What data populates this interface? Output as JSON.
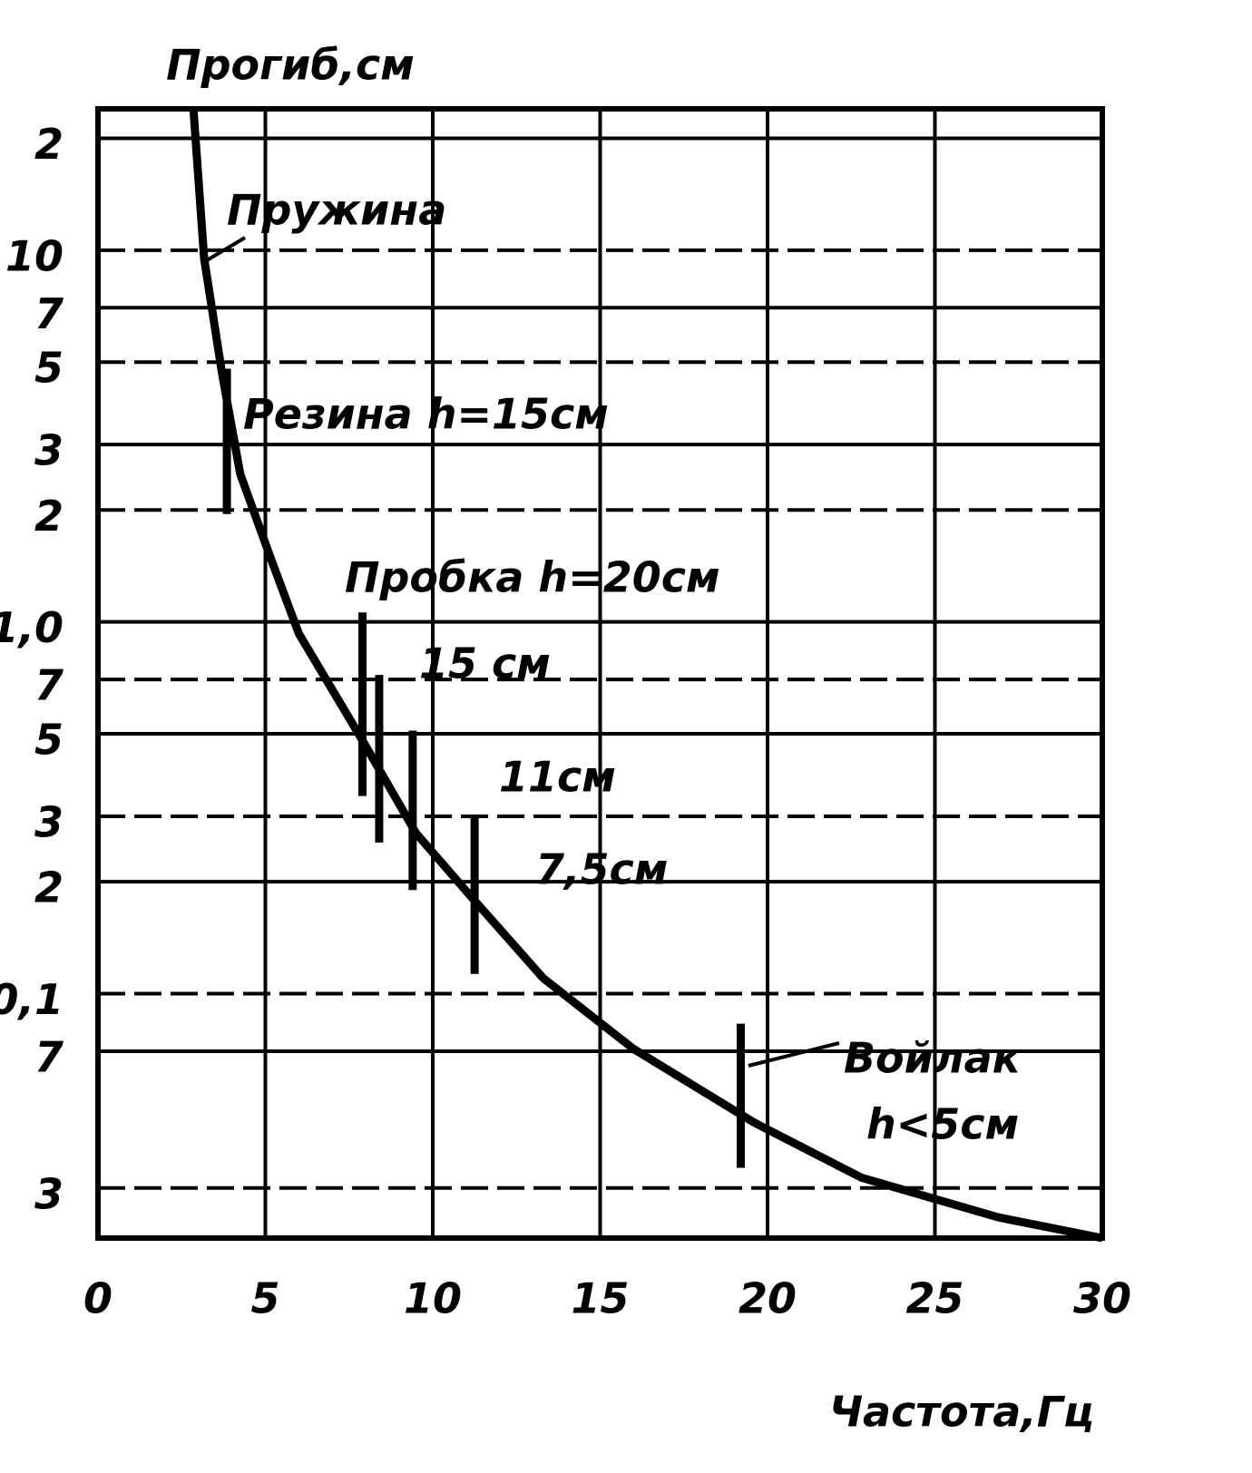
{
  "chart_data": {
    "type": "line",
    "title": "Прогиб,см",
    "x_label": "Частота,Гц",
    "log_y": true,
    "grid": true,
    "xlim": [
      0,
      30
    ],
    "xticks": [
      0,
      5,
      10,
      15,
      20,
      25,
      30
    ],
    "ylim": [
      0.022,
      24
    ],
    "yticks": [
      {
        "value": 20,
        "label": "2"
      },
      10,
      7,
      5,
      3,
      2,
      {
        "value": 1,
        "label": "1,0"
      },
      {
        "value": 0.7,
        "label": "7"
      },
      {
        "value": 0.5,
        "label": "5"
      },
      {
        "value": 0.3,
        "label": "3"
      },
      {
        "value": 0.2,
        "label": "2"
      },
      {
        "value": 0.1,
        "label": "0,1"
      },
      {
        "value": 0.07,
        "label": "7"
      },
      {
        "value": 0.03,
        "label": "3"
      }
    ],
    "series": [
      {
        "color": "#000000",
        "x": [
          2.85,
          3.17,
          3.7,
          4.25,
          5.2,
          6.0,
          7.9,
          9.5,
          11.2,
          13.3,
          16.0,
          19.6,
          22.8,
          26.9,
          30
        ],
        "values": [
          24,
          9.5,
          4.7,
          2.5,
          1.45,
          0.93,
          0.48,
          0.27,
          0.18,
          0.11,
          0.071,
          0.045,
          0.032,
          0.025,
          0.022
        ]
      }
    ],
    "ranges": [
      {
        "x": 3.85,
        "low": 1.95,
        "high": 4.8
      },
      {
        "x": 7.9,
        "low": 0.34,
        "high": 1.06
      },
      {
        "x": 8.4,
        "low": 0.255,
        "high": 0.72
      },
      {
        "x": 9.4,
        "low": 0.19,
        "high": 0.51
      },
      {
        "x": 11.25,
        "low": 0.113,
        "high": 0.3
      },
      {
        "x": 19.2,
        "low": 0.034,
        "high": 0.083
      }
    ],
    "annotations": [
      "Пружина",
      "Резина h=15см",
      "Пробка h=20см",
      "15 см",
      "11см",
      "7,5см",
      "Войлак",
      "h<5см"
    ]
  }
}
